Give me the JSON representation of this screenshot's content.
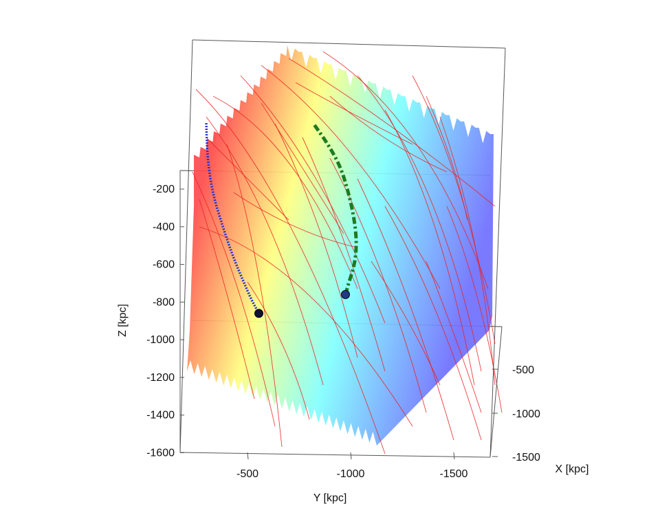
{
  "chart_data": {
    "type": "scatter",
    "title": "",
    "projection": "3d",
    "xlabel": "X [kpc]",
    "ylabel": "Y [kpc]",
    "zlabel": "Z [kpc]",
    "x_ticks": [
      {
        "value": -500,
        "label": "-500"
      },
      {
        "value": -1000,
        "label": "-1000"
      },
      {
        "value": -1500,
        "label": "-1500"
      }
    ],
    "y_ticks": [
      {
        "value": -500,
        "label": "-500"
      },
      {
        "value": -1000,
        "label": "-1000"
      },
      {
        "value": -1500,
        "label": "-1500"
      }
    ],
    "z_ticks": [
      {
        "value": -200,
        "label": "-200"
      },
      {
        "value": -400,
        "label": "-400"
      },
      {
        "value": -600,
        "label": "-600"
      },
      {
        "value": -800,
        "label": "-800"
      },
      {
        "value": -1000,
        "label": "-1000"
      },
      {
        "value": -1200,
        "label": "-1200"
      },
      {
        "value": -1400,
        "label": "-1400"
      },
      {
        "value": -1600,
        "label": "-1600"
      }
    ],
    "ylim": [
      -250,
      -1900
    ],
    "zlim": [
      -1600,
      150
    ],
    "plane": {
      "colormap": [
        "#ff4a4a",
        "#ffff80",
        "#80ffff",
        "#6f6fff"
      ]
    },
    "series": [
      {
        "style": "dotted",
        "color": "#2233cc",
        "endpoint_color": "#111133",
        "points": [
          {
            "y": -300,
            "z": 150
          },
          {
            "y": -305,
            "z": -30
          },
          {
            "y": -330,
            "z": -220
          },
          {
            "y": -380,
            "z": -400
          },
          {
            "y": -430,
            "z": -560
          },
          {
            "y": -480,
            "z": -690
          },
          {
            "y": -520,
            "z": -790
          },
          {
            "y": -555,
            "z": -860
          }
        ]
      },
      {
        "style": "dash-dot",
        "color": "#1f7a1f",
        "endpoint_color": "#1f3a8a",
        "points": [
          {
            "y": -825,
            "z": 140
          },
          {
            "y": -895,
            "z": 30
          },
          {
            "y": -950,
            "z": -80
          },
          {
            "y": -985,
            "z": -200
          },
          {
            "y": -1015,
            "z": -340
          },
          {
            "y": -1030,
            "z": -480
          },
          {
            "y": -1020,
            "z": -600
          },
          {
            "y": -990,
            "z": -700
          },
          {
            "y": -975,
            "z": -760
          }
        ]
      }
    ],
    "background_orbits": {
      "color": "#e82020",
      "count": 30
    }
  }
}
